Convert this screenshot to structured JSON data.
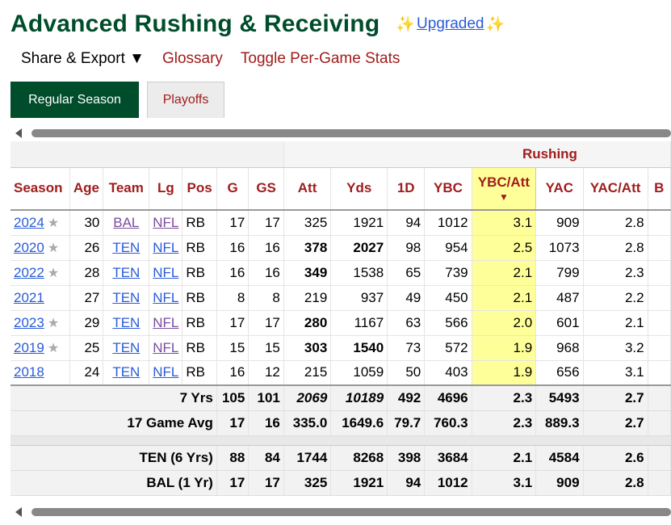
{
  "header": {
    "title": "Advanced Rushing & Receiving",
    "upgraded_label": "Upgraded",
    "sparkle": "✨"
  },
  "links": {
    "share_export": "Share & Export ▼",
    "glossary": "Glossary",
    "toggle": "Toggle Per-Game Stats"
  },
  "tabs": {
    "regular": "Regular Season",
    "playoffs": "Playoffs"
  },
  "table": {
    "group_label": "Rushing",
    "columns": [
      "Season",
      "Age",
      "Team",
      "Lg",
      "Pos",
      "G",
      "GS",
      "Att",
      "Yds",
      "1D",
      "YBC",
      "YBC/Att",
      "YAC",
      "YAC/Att",
      "B"
    ],
    "sort_arrow": "▼",
    "star": "★",
    "rows": [
      {
        "season": "2024",
        "star": true,
        "age": "30",
        "team": "BAL",
        "lg": "NFL",
        "pos": "RB",
        "g": "17",
        "gs": "17",
        "att": "325",
        "yds": "1921",
        "fd": "94",
        "ybc": "1012",
        "ybc_att": "3.1",
        "yac": "909",
        "yac_att": "2.8",
        "att_bold": false,
        "yds_bold": false
      },
      {
        "season": "2020",
        "star": true,
        "age": "26",
        "team": "TEN",
        "lg": "NFL",
        "pos": "RB",
        "g": "16",
        "gs": "16",
        "att": "378",
        "yds": "2027",
        "fd": "98",
        "ybc": "954",
        "ybc_att": "2.5",
        "yac": "1073",
        "yac_att": "2.8",
        "att_bold": true,
        "yds_bold": true
      },
      {
        "season": "2022",
        "star": true,
        "age": "28",
        "team": "TEN",
        "lg": "NFL",
        "pos": "RB",
        "g": "16",
        "gs": "16",
        "att": "349",
        "yds": "1538",
        "fd": "65",
        "ybc": "739",
        "ybc_att": "2.1",
        "yac": "799",
        "yac_att": "2.3",
        "att_bold": true,
        "yds_bold": false
      },
      {
        "season": "2021",
        "star": false,
        "age": "27",
        "team": "TEN",
        "lg": "NFL",
        "pos": "RB",
        "g": "8",
        "gs": "8",
        "att": "219",
        "yds": "937",
        "fd": "49",
        "ybc": "450",
        "ybc_att": "2.1",
        "yac": "487",
        "yac_att": "2.2",
        "att_bold": false,
        "yds_bold": false
      },
      {
        "season": "2023",
        "star": true,
        "age": "29",
        "team": "TEN",
        "lg": "NFL",
        "pos": "RB",
        "g": "17",
        "gs": "17",
        "att": "280",
        "yds": "1167",
        "fd": "63",
        "ybc": "566",
        "ybc_att": "2.0",
        "yac": "601",
        "yac_att": "2.1",
        "att_bold": true,
        "yds_bold": false
      },
      {
        "season": "2019",
        "star": true,
        "age": "25",
        "team": "TEN",
        "lg": "NFL",
        "pos": "RB",
        "g": "15",
        "gs": "15",
        "att": "303",
        "yds": "1540",
        "fd": "73",
        "ybc": "572",
        "ybc_att": "1.9",
        "yac": "968",
        "yac_att": "3.2",
        "att_bold": true,
        "yds_bold": true
      },
      {
        "season": "2018",
        "star": false,
        "age": "24",
        "team": "TEN",
        "lg": "NFL",
        "pos": "RB",
        "g": "16",
        "gs": "12",
        "att": "215",
        "yds": "1059",
        "fd": "50",
        "ybc": "403",
        "ybc_att": "1.9",
        "yac": "656",
        "yac_att": "3.1",
        "att_bold": false,
        "yds_bold": false
      }
    ],
    "totals": [
      {
        "label": "7 Yrs",
        "g": "105",
        "gs": "101",
        "att": "2069",
        "yds": "10189",
        "fd": "492",
        "ybc": "4696",
        "ybc_att": "2.3",
        "yac": "5493",
        "yac_att": "2.7",
        "italic": true
      },
      {
        "label": "17 Game Avg",
        "g": "17",
        "gs": "16",
        "att": "335.0",
        "yds": "1649.6",
        "fd": "79.7",
        "ybc": "760.3",
        "ybc_att": "2.3",
        "yac": "889.3",
        "yac_att": "2.7",
        "italic": false
      }
    ],
    "teams": [
      {
        "label": "TEN (6 Yrs)",
        "g": "88",
        "gs": "84",
        "att": "1744",
        "yds": "8268",
        "fd": "398",
        "ybc": "3684",
        "ybc_att": "2.1",
        "yac": "4584",
        "yac_att": "2.6"
      },
      {
        "label": "BAL (1 Yr)",
        "g": "17",
        "gs": "17",
        "att": "325",
        "yds": "1921",
        "fd": "94",
        "ybc": "1012",
        "ybc_att": "3.1",
        "yac": "909",
        "yac_att": "2.8"
      }
    ]
  },
  "colors": {
    "title": "#004d2c",
    "link_red": "#a11c1c",
    "highlight": "#ffff99",
    "link_blue": "#2a5bd7"
  }
}
